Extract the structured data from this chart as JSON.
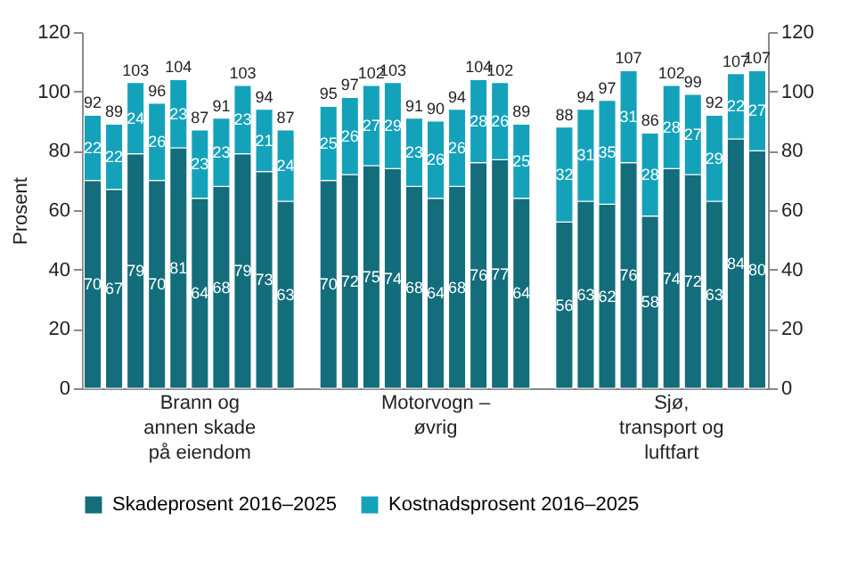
{
  "chart_data": {
    "type": "bar",
    "stacked": true,
    "ylabel": "Prosent",
    "ylim": [
      0,
      120
    ],
    "yticks": [
      0,
      20,
      40,
      60,
      80,
      100,
      120
    ],
    "y2lim": [
      0,
      120
    ],
    "y2ticks": [
      0,
      20,
      40,
      60,
      80,
      100,
      120
    ],
    "legend": "bottom",
    "data_labels": true,
    "categories": [
      null,
      null,
      null,
      null,
      null,
      "Brann og\nannen skade\npå eiendom",
      null,
      null,
      null,
      null,
      null,
      null,
      null,
      null,
      null,
      null,
      "Motorvogn –\nøvrig",
      null,
      null,
      null,
      null,
      null,
      null,
      null,
      null,
      null,
      null,
      "Sjø,\ntransport og\nluftfart",
      null,
      null,
      null,
      null
    ],
    "series": [
      {
        "name": "Skadeprosent 2016–2025",
        "color": "#136d7b",
        "values": [
          70,
          67,
          79,
          70,
          81,
          64,
          68,
          79,
          73,
          63,
          null,
          70,
          72,
          75,
          74,
          68,
          64,
          68,
          76,
          77,
          64,
          null,
          56,
          63,
          62,
          76,
          58,
          74,
          72,
          63,
          84,
          80
        ]
      },
      {
        "name": "Kostnadsprosent 2016–2025",
        "color": "#14a2bb",
        "values": [
          22,
          22,
          24,
          26,
          23,
          23,
          23,
          23,
          21,
          24,
          null,
          25,
          26,
          27,
          29,
          23,
          26,
          26,
          28,
          26,
          25,
          null,
          32,
          31,
          35,
          31,
          28,
          28,
          27,
          29,
          22,
          27
        ]
      }
    ],
    "totals": [
      "92",
      "89",
      "103",
      "96",
      "104",
      "87",
      "91",
      "103",
      "94",
      "87",
      null,
      "95",
      "97",
      "102",
      "103",
      "91",
      "90",
      "94",
      "104",
      "102",
      "89",
      null,
      "88",
      "94",
      "97",
      "107",
      "86",
      "102",
      "99",
      "92",
      "107",
      "107"
    ]
  }
}
